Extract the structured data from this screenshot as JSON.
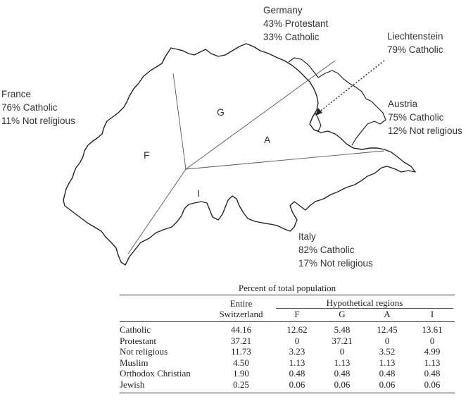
{
  "labels": {
    "germany": {
      "name": "Germany",
      "l1": "43% Protestant",
      "l2": "33% Catholic"
    },
    "liechtenstein": {
      "name": "Liechtenstein",
      "l1": "79% Catholic"
    },
    "france": {
      "name": "France",
      "l1": "76% Catholic",
      "l2": "11% Not religious"
    },
    "austria": {
      "name": "Austria",
      "l1": "75% Catholic",
      "l2": "12% Not religious"
    },
    "italy": {
      "name": "Italy",
      "l1": "82% Catholic",
      "l2": "17% Not religious"
    }
  },
  "regions": {
    "f": "F",
    "g": "G",
    "a": "A",
    "i": "I"
  },
  "table": {
    "caption": "Percent of total population",
    "col_entire_1": "Entire",
    "col_entire_2": "Switzerland",
    "col_group": "Hypothetical regions",
    "cols": [
      "F",
      "G",
      "A",
      "I"
    ],
    "rows": [
      {
        "name": "Catholic",
        "values": [
          "44.16",
          "12.62",
          "5.48",
          "12.45",
          "13.61"
        ]
      },
      {
        "name": "Protestant",
        "values": [
          "37.21",
          "0",
          "37.21",
          "0",
          "0"
        ]
      },
      {
        "name": "Not religious",
        "values": [
          "11.73",
          "3.23",
          "0",
          "3.52",
          "4.99"
        ]
      },
      {
        "name": "Muslim",
        "values": [
          "4.50",
          "1.13",
          "1.13",
          "1.13",
          "1.13"
        ]
      },
      {
        "name": "Orthodox Christian",
        "values": [
          "1.90",
          "0.48",
          "0.48",
          "0.48",
          "0.48"
        ]
      },
      {
        "name": "Jewish",
        "values": [
          "0.25",
          "0.06",
          "0.06",
          "0.06",
          "0.06"
        ]
      }
    ]
  }
}
